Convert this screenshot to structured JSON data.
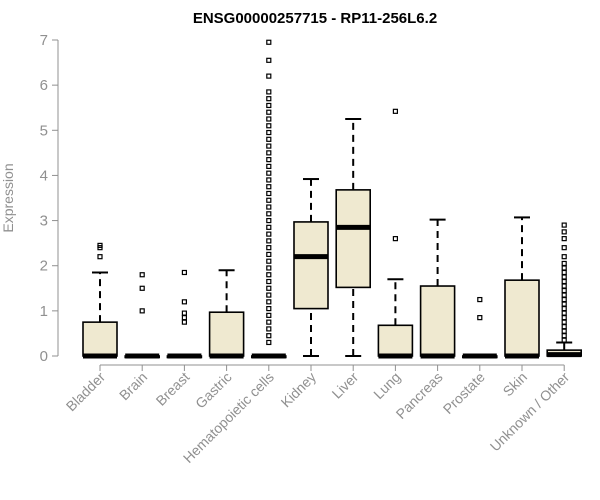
{
  "chart_data": {
    "type": "boxplot",
    "title": "ENSG00000257715 - RP11-256L6.2",
    "ylabel": "Expression",
    "xlabel": "",
    "ylim": [
      0,
      7
    ],
    "yticks": [
      0,
      1,
      2,
      3,
      4,
      5,
      6,
      7
    ],
    "grid": false,
    "legend": "none",
    "colors": {
      "box_fill": "#efe9d0",
      "box_stroke": "#000000",
      "axis": "#909090",
      "text": "#909090"
    },
    "categories": [
      "Bladder",
      "Brain",
      "Breast",
      "Gastric",
      "Hematopoietic cells",
      "Kidney",
      "Liver",
      "Lung",
      "Pancreas",
      "Prostate",
      "Skin",
      "Unknown / Other"
    ],
    "boxes": [
      {
        "category": "Bladder",
        "q1": 0,
        "median": 0,
        "q3": 0.75,
        "whisker_low": 0,
        "whisker_high": 1.85,
        "outliers": [
          2.2,
          2.4,
          2.45
        ]
      },
      {
        "category": "Brain",
        "q1": 0,
        "median": 0,
        "q3": 0,
        "whisker_low": 0,
        "whisker_high": 0,
        "outliers": [
          1.0,
          1.5,
          1.8
        ]
      },
      {
        "category": "Breast",
        "q1": 0,
        "median": 0,
        "q3": 0,
        "whisker_low": 0,
        "whisker_high": 0,
        "outliers": [
          0.75,
          0.85,
          0.95,
          1.2,
          1.85
        ]
      },
      {
        "category": "Gastric",
        "q1": 0,
        "median": 0,
        "q3": 0.97,
        "whisker_low": 0,
        "whisker_high": 1.9,
        "outliers": []
      },
      {
        "category": "Hematopoietic cells",
        "q1": 0,
        "median": 0,
        "q3": 0,
        "whisker_low": 0,
        "whisker_high": 0,
        "outliers": [
          0.3,
          0.45,
          0.6,
          0.75,
          0.9,
          1.05,
          1.2,
          1.35,
          1.5,
          1.65,
          1.8,
          1.95,
          2.1,
          2.25,
          2.4,
          2.55,
          2.7,
          2.85,
          3.0,
          3.15,
          3.3,
          3.45,
          3.6,
          3.75,
          3.9,
          4.05,
          4.2,
          4.35,
          4.5,
          4.65,
          4.8,
          4.95,
          5.1,
          5.25,
          5.4,
          5.55,
          5.7,
          5.85,
          6.2,
          6.55,
          6.95
        ]
      },
      {
        "category": "Kidney",
        "q1": 1.05,
        "median": 2.2,
        "q3": 2.97,
        "whisker_low": 0,
        "whisker_high": 3.92,
        "outliers": []
      },
      {
        "category": "Liver",
        "q1": 1.52,
        "median": 2.85,
        "q3": 3.68,
        "whisker_low": 0,
        "whisker_high": 5.25,
        "outliers": []
      },
      {
        "category": "Lung",
        "q1": 0,
        "median": 0,
        "q3": 0.68,
        "whisker_low": 0,
        "whisker_high": 1.7,
        "outliers": [
          2.6,
          5.42
        ]
      },
      {
        "category": "Pancreas",
        "q1": 0,
        "median": 0,
        "q3": 1.55,
        "whisker_low": 0,
        "whisker_high": 3.02,
        "outliers": []
      },
      {
        "category": "Prostate",
        "q1": 0,
        "median": 0,
        "q3": 0,
        "whisker_low": 0,
        "whisker_high": 0,
        "outliers": [
          0.85,
          1.25
        ]
      },
      {
        "category": "Skin",
        "q1": 0,
        "median": 0,
        "q3": 1.68,
        "whisker_low": 0,
        "whisker_high": 3.07,
        "outliers": []
      },
      {
        "category": "Unknown / Other",
        "q1": 0,
        "median": 0.03,
        "q3": 0.13,
        "whisker_low": 0,
        "whisker_high": 0.3,
        "outliers": [
          0.35,
          0.45,
          0.55,
          0.65,
          0.75,
          0.85,
          0.95,
          1.05,
          1.15,
          1.25,
          1.35,
          1.45,
          1.55,
          1.65,
          1.75,
          1.85,
          1.95,
          2.05,
          2.2,
          2.4,
          2.6,
          2.75,
          2.9
        ]
      }
    ]
  }
}
